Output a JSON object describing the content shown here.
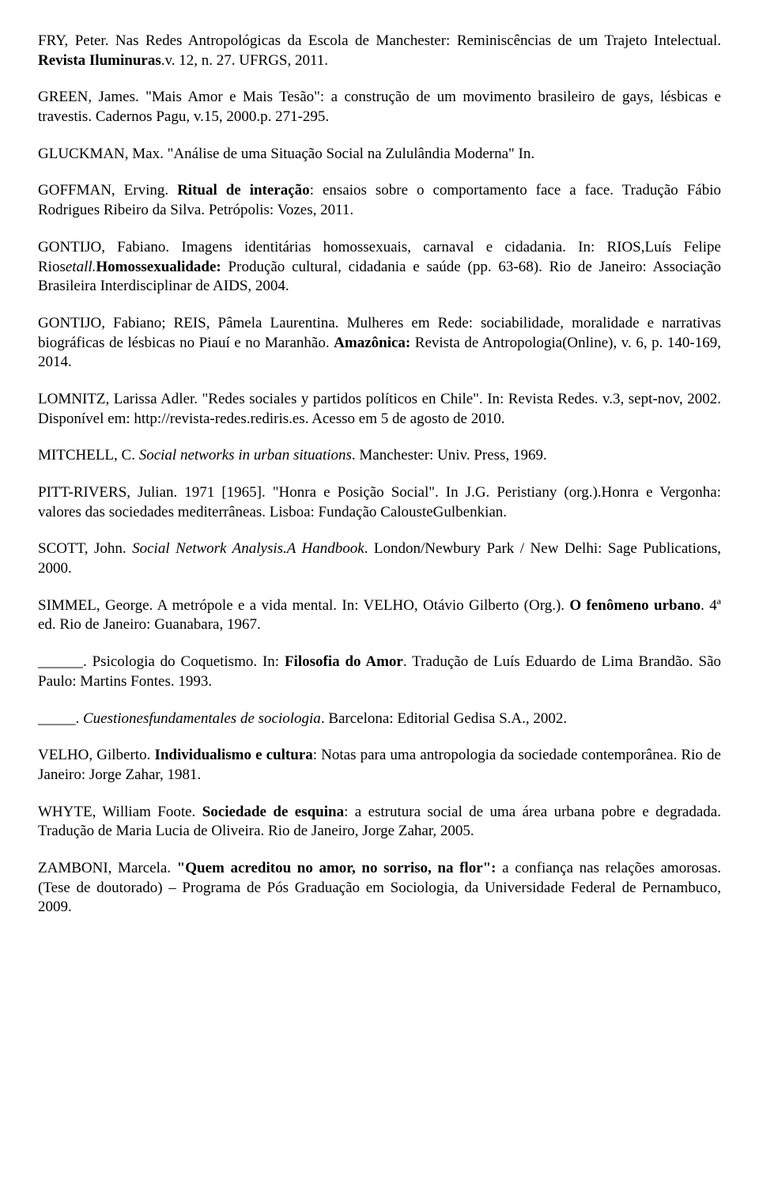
{
  "refs": {
    "r1": {
      "a": "FRY, Peter. Nas Redes Antropológicas da Escola de Manchester: Reminiscências de um Trajeto Intelectual. ",
      "b": "Revista Iluminuras",
      "c": ".v. 12, n. 27. UFRGS, 2011."
    },
    "r2": {
      "a": "GREEN, James. \"Mais Amor e Mais Tesão\": a construção de um movimento brasileiro de gays, lésbicas e travestis. Cadernos Pagu, v.15, 2000.p. 271-295."
    },
    "r3": {
      "a": "GLUCKMAN, Max. \"Análise de uma Situação Social na Zululândia Moderna\" In."
    },
    "r4": {
      "a": "GOFFMAN, Erving. ",
      "b": "Ritual de interação",
      "c": ": ensaios sobre o comportamento face a face. Tradução Fábio Rodrigues Ribeiro da Silva. Petrópolis: Vozes, 2011."
    },
    "r5": {
      "a": "GONTIJO, Fabiano. Imagens identitárias homossexuais, carnaval e cidadania. In: RIOS,Luís Felipe Rios",
      "b": "etall.",
      "c": "Homossexualidade:",
      "d": " Produção cultural, cidadania e saúde (pp. 63-68). Rio de Janeiro: Associação Brasileira Interdisciplinar de AIDS, 2004."
    },
    "r6": {
      "a": "GONTIJO, Fabiano; REIS, Pâmela Laurentina. Mulheres em Rede: sociabilidade, moralidade e narrativas biográficas de lésbicas no Piauí e no Maranhão. ",
      "b": "Amazônica:",
      "c": " Revista de Antropologia(Online), v. 6, p. 140-169, 2014."
    },
    "r7": {
      "a": "LOMNITZ, Larissa Adler. \"Redes sociales y partidos políticos en Chile\". In: Revista Redes. v.3, sept-nov, 2002. Disponível em: http://revista-redes.rediris.es. Acesso em 5 de agosto de 2010."
    },
    "r8": {
      "a": "MITCHELL, C. ",
      "b": "Social networks in urban situations",
      "c": ". Manchester: Univ. Press, 1969."
    },
    "r9": {
      "a": "PITT-RIVERS, Julian. 1971 [1965]. \"Honra e Posição Social\". In J.G. Peristiany (org.).Honra e Vergonha: valores das sociedades mediterrâneas. Lisboa: Fundação CalousteGulbenkian."
    },
    "r10": {
      "a": "SCOTT, John. ",
      "b": "Social Network Analysis.A Handbook",
      "c": ". London/Newbury Park / New Delhi: Sage Publications, 2000."
    },
    "r11": {
      "a": "SIMMEL, George. A metrópole e a vida mental. In: VELHO, Otávio Gilberto (Org.). ",
      "b": "O fenômeno urbano",
      "c": ". 4ª ed. Rio de Janeiro: Guanabara, 1967."
    },
    "r12": {
      "a": "______. Psicologia do Coquetismo. In: ",
      "b": "Filosofia do Amor",
      "c": ". Tradução de Luís Eduardo de Lima Brandão. São Paulo: Martins Fontes. 1993."
    },
    "r13": {
      "a": "_____. ",
      "b": "Cuestionesfundamentales de sociologia",
      "c": ". Barcelona: Editorial Gedisa S.A., 2002."
    },
    "r14": {
      "a": "VELHO, Gilberto. ",
      "b": "Individualismo e cultura",
      "c": ": Notas para uma antropologia da sociedade contemporânea. Rio de Janeiro: Jorge Zahar, 1981."
    },
    "r15": {
      "a": "WHYTE, William Foote. ",
      "b": "Sociedade de esquina",
      "c": ": a estrutura social de uma área urbana pobre e degradada. Tradução de Maria Lucia de Oliveira. Rio de Janeiro, Jorge Zahar, 2005."
    },
    "r16": {
      "a": "ZAMBONI, Marcela. ",
      "b": "\"Quem acreditou no amor, no sorriso, na flor\":",
      "c": " a confiança nas relações amorosas. (Tese de doutorado) – Programa de Pós Graduação em Sociologia, da Universidade Federal de Pernambuco, 2009."
    }
  }
}
